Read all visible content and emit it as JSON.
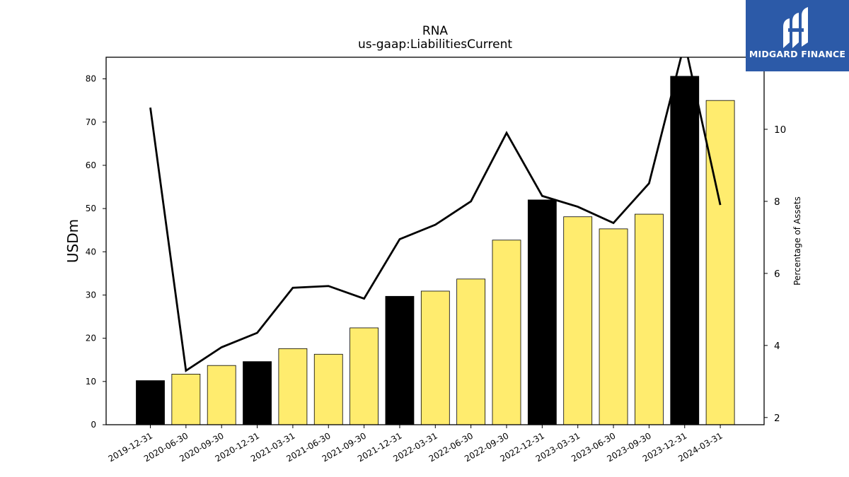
{
  "brand": {
    "name": "MIDGARD FINANCE",
    "bg_color": "#2c5aa8"
  },
  "chart_data": {
    "type": "bar",
    "title": "RNA",
    "subtitle": "us-gaap:LiabilitiesCurrent",
    "ylabel": "USDm",
    "y2label": "Percentage of Assets",
    "ylim": [
      0,
      85
    ],
    "y2lim": [
      1.8,
      12
    ],
    "yticks": [
      0,
      10,
      20,
      30,
      40,
      50,
      60,
      70,
      80
    ],
    "y2ticks": [
      2,
      4,
      6,
      8,
      10
    ],
    "grid": false,
    "categories": [
      "2019-12-31",
      "2020-06-30",
      "2020-09-30",
      "2020-12-31",
      "2021-03-31",
      "2021-06-30",
      "2021-09-30",
      "2021-12-31",
      "2022-03-31",
      "2022-06-30",
      "2022-09-30",
      "2022-12-31",
      "2023-03-31",
      "2023-06-30",
      "2023-09-30",
      "2023-12-31",
      "2024-03-31"
    ],
    "series": [
      {
        "type": "bar",
        "axis": "left",
        "values": [
          10.2,
          11.7,
          13.7,
          14.6,
          17.6,
          16.3,
          22.4,
          29.7,
          30.9,
          33.7,
          42.7,
          52.0,
          48.1,
          45.3,
          48.7,
          80.6,
          75.0
        ],
        "colors": [
          "#000000",
          "#ffec6e",
          "#ffec6e",
          "#000000",
          "#ffec6e",
          "#ffec6e",
          "#ffec6e",
          "#000000",
          "#ffec6e",
          "#ffec6e",
          "#ffec6e",
          "#000000",
          "#ffec6e",
          "#ffec6e",
          "#ffec6e",
          "#000000",
          "#ffec6e"
        ]
      },
      {
        "type": "line",
        "axis": "right",
        "color": "#000000",
        "values": [
          10.6,
          3.3,
          3.95,
          4.35,
          5.6,
          5.65,
          5.3,
          6.95,
          7.35,
          8.0,
          9.9,
          8.15,
          7.85,
          7.4,
          8.5,
          12.4,
          7.9
        ]
      }
    ]
  }
}
